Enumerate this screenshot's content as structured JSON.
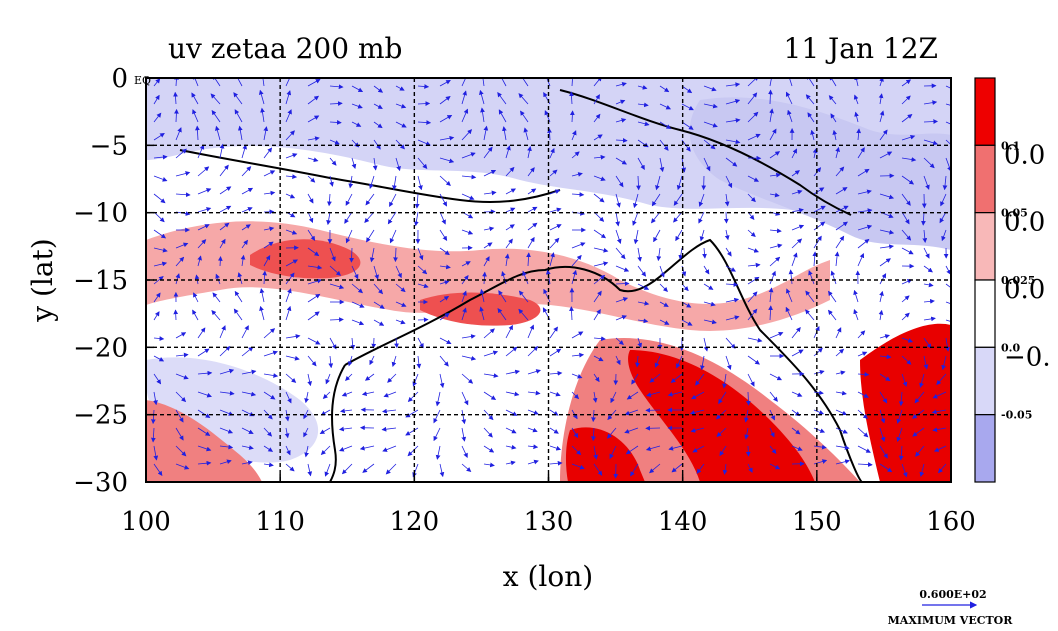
{
  "header": {
    "title": "uv zetaa 200 mb",
    "date": "11 Jan 12Z"
  },
  "chart_data": {
    "type": "heatmap",
    "xlabel": "x (lon)",
    "ylabel": "y (lat)",
    "xlim": [
      100,
      160
    ],
    "ylim": [
      -30,
      0
    ],
    "x_ticks": [
      "100",
      "110",
      "120",
      "130",
      "140",
      "150",
      "160"
    ],
    "y_ticks": [
      "0",
      "−5",
      "−10",
      "−15",
      "−20",
      "−25",
      "−30"
    ],
    "grid": true,
    "origin_label": "EQ",
    "field": "absolute vorticity (zetaa) with uv wind vectors, 200 mb",
    "colorbar": {
      "levels": [
        "0.1",
        "0.05",
        "0.025",
        "0.0",
        "-0.05"
      ],
      "side_labels": [
        "0.0",
        "0.0",
        "0.0",
        "−0."
      ],
      "colors": [
        "#ee0000",
        "#f07070",
        "#f8b8b8",
        "#ffffff",
        "#d8d8f8",
        "#a8a8ee"
      ]
    },
    "vector_key": {
      "value": "0.600E+02",
      "label": "MAXIMUM VECTOR"
    }
  }
}
